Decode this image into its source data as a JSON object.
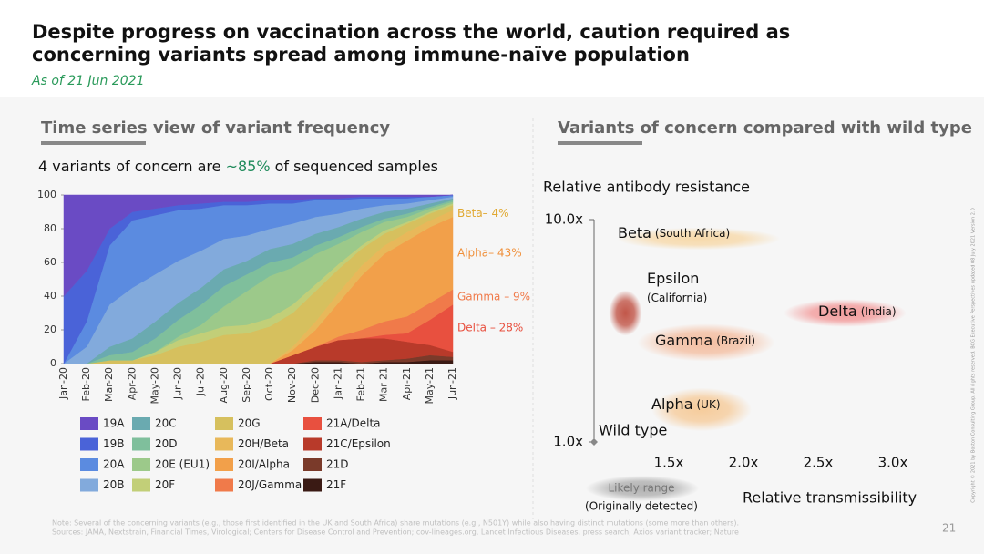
{
  "header": {
    "title_line1": "Despite progress on vaccination across the world, caution required as",
    "title_line2": "concerning variants spread among immune-naïve population",
    "subtitle": "As of 21 Jun 2021"
  },
  "chart_data": [
    {
      "type": "area",
      "section_title": "Time series view of variant frequency",
      "caption_pre": "4 variants of concern are ",
      "caption_highlight": "~85%",
      "caption_post": " of sequenced samples",
      "categories": [
        "Jan-20",
        "Feb-20",
        "Mar-20",
        "Apr-20",
        "May-20",
        "Jun-20",
        "Jul-20",
        "Aug-20",
        "Sep-20",
        "Oct-20",
        "Nov-20",
        "Dec-20",
        "Jan-21",
        "Feb-21",
        "Mar-21",
        "Apr-21",
        "May-21",
        "Jun-21"
      ],
      "ylim": [
        0,
        100
      ],
      "yticks": [
        0,
        20,
        40,
        60,
        80,
        100
      ],
      "stacked": true,
      "series": [
        {
          "name": "19A",
          "color": "#6a4bc4",
          "values": [
            60,
            45,
            20,
            10,
            8,
            6,
            5,
            4,
            4,
            3,
            3,
            2,
            2,
            1,
            1,
            1,
            1,
            0
          ]
        },
        {
          "name": "19B",
          "color": "#4a63d8",
          "values": [
            40,
            30,
            10,
            5,
            4,
            3,
            3,
            2,
            2,
            2,
            2,
            1,
            1,
            1,
            1,
            1,
            0,
            0
          ]
        },
        {
          "name": "20A",
          "color": "#5b8be0",
          "values": [
            0,
            15,
            35,
            40,
            35,
            30,
            25,
            20,
            18,
            15,
            12,
            10,
            8,
            6,
            4,
            3,
            2,
            1
          ]
        },
        {
          "name": "20B",
          "color": "#82aadc",
          "values": [
            0,
            10,
            25,
            30,
            28,
            25,
            22,
            18,
            15,
            12,
            12,
            10,
            8,
            6,
            4,
            3,
            2,
            1
          ]
        },
        {
          "name": "20C",
          "color": "#6aaab0",
          "values": [
            0,
            0,
            5,
            8,
            10,
            10,
            10,
            10,
            8,
            8,
            8,
            7,
            6,
            5,
            4,
            3,
            2,
            1
          ]
        },
        {
          "name": "20D",
          "color": "#7fbf9c",
          "values": [
            0,
            0,
            3,
            5,
            8,
            10,
            12,
            12,
            10,
            8,
            6,
            5,
            4,
            3,
            2,
            2,
            1,
            1
          ]
        },
        {
          "name": "20E (EU1)",
          "color": "#9cc98a",
          "values": [
            0,
            0,
            0,
            0,
            0,
            2,
            5,
            12,
            20,
            25,
            22,
            18,
            12,
            8,
            5,
            3,
            2,
            1
          ]
        },
        {
          "name": "20F",
          "color": "#c2cf78",
          "values": [
            0,
            0,
            0,
            0,
            2,
            4,
            5,
            5,
            5,
            5,
            5,
            4,
            3,
            2,
            2,
            1,
            1,
            1
          ]
        },
        {
          "name": "20G",
          "color": "#d6c05e",
          "values": [
            0,
            0,
            2,
            2,
            5,
            10,
            13,
            17,
            18,
            22,
            20,
            18,
            14,
            10,
            7,
            5,
            4,
            3
          ]
        },
        {
          "name": "20H/Beta",
          "color": "#e8b85a",
          "label": "Beta– 4%",
          "label_color": "#e0a830",
          "values": [
            0,
            0,
            0,
            0,
            0,
            0,
            0,
            0,
            0,
            0,
            2,
            5,
            6,
            6,
            5,
            5,
            4,
            4
          ]
        },
        {
          "name": "20I/Alpha",
          "color": "#f2a04a",
          "label": "Alpha– 43%",
          "label_color": "#f0903a",
          "values": [
            0,
            0,
            0,
            0,
            0,
            0,
            0,
            0,
            0,
            0,
            3,
            10,
            20,
            32,
            40,
            45,
            45,
            43
          ]
        },
        {
          "name": "20J/Gamma",
          "color": "#f07a4a",
          "label": "Gamma – 9%",
          "label_color": "#f07a4a",
          "values": [
            0,
            0,
            0,
            0,
            0,
            0,
            0,
            0,
            0,
            0,
            0,
            0,
            2,
            5,
            8,
            10,
            10,
            9
          ]
        },
        {
          "name": "21A/Delta",
          "color": "#e8503f",
          "label": "Delta – 28%",
          "label_color": "#e8503f",
          "values": [
            0,
            0,
            0,
            0,
            0,
            0,
            0,
            0,
            0,
            0,
            0,
            0,
            0,
            0,
            2,
            5,
            15,
            28
          ]
        },
        {
          "name": "21C/Epsilon",
          "color": "#b83a2a",
          "values": [
            0,
            0,
            0,
            0,
            0,
            0,
            0,
            0,
            0,
            0,
            5,
            8,
            12,
            14,
            13,
            10,
            6,
            3
          ]
        },
        {
          "name": "21D",
          "color": "#7a3a2a",
          "values": [
            0,
            0,
            0,
            0,
            0,
            0,
            0,
            0,
            0,
            0,
            0,
            1,
            1,
            1,
            1,
            2,
            3,
            2
          ]
        },
        {
          "name": "21F",
          "color": "#3a1a14",
          "values": [
            0,
            0,
            0,
            0,
            0,
            0,
            0,
            0,
            0,
            0,
            0,
            1,
            1,
            0,
            1,
            1,
            2,
            2
          ]
        }
      ]
    },
    {
      "type": "range",
      "section_title": "Variants of concern compared with wild type",
      "ylabel": "Relative antibody resistance",
      "xlabel": "Relative transmissibility",
      "ylog": true,
      "ylim": [
        1,
        10
      ],
      "yticks": [
        {
          "value": 1,
          "label": "1.0x"
        },
        {
          "value": 10,
          "label": "10.0x"
        }
      ],
      "xlim": [
        1,
        3.05
      ],
      "xticks": [
        {
          "value": 1.5,
          "label": "1.5x"
        },
        {
          "value": 2,
          "label": "2.0x"
        },
        {
          "value": 2.5,
          "label": "2.5x"
        },
        {
          "value": 3,
          "label": "3.0x"
        }
      ],
      "points": [
        {
          "name": "Beta",
          "region": "(South Africa)",
          "color": "#f8c77a",
          "x": 1.7,
          "y": 8.2,
          "xrange": [
            1.15,
            2.24
          ],
          "yrange": [
            7.3,
            9.2
          ]
        },
        {
          "name": "Epsilon",
          "region": "(California)",
          "color": "#b83a2a",
          "x": 1.21,
          "y": 3.8,
          "xrange": [
            1.1,
            1.32
          ],
          "yrange": [
            3,
            4.8
          ]
        },
        {
          "name": "Delta",
          "region": "(India)",
          "color": "#f06060",
          "x": 2.68,
          "y": 3.8,
          "xrange": [
            2.27,
            3.09
          ],
          "yrange": [
            3.3,
            4.4
          ]
        },
        {
          "name": "Gamma",
          "region": "(Brazil)",
          "color": "#f39a6a",
          "x": 1.75,
          "y": 2.8,
          "xrange": [
            1.29,
            2.21
          ],
          "yrange": [
            2.3,
            3.4
          ]
        },
        {
          "name": "Alpha",
          "region": "(UK)",
          "color": "#f5b060",
          "x": 1.72,
          "y": 1.4,
          "xrange": [
            1.38,
            2.05
          ],
          "yrange": [
            1.15,
            1.8
          ]
        }
      ],
      "reference": {
        "name": "Wild type",
        "x": 1,
        "y": 1
      },
      "legend_title": "Likely range",
      "legend_note": "(Originally detected)"
    }
  ],
  "footer": {
    "note": "Note: Several of the concerning variants (e.g., those first identified in the UK and South Africa) share mutations (e.g., N501Y) while also having distinct mutations (some more than others).",
    "sources": "Sources: JAMA, Nextstrain, Financial Times, Virological; Centers for Disease Control and Prevention; cov-lineages.org, Lancet Infectious Diseases, press search; Axios variant tracker; Nature",
    "page": "21",
    "copyright": "Copyright © 2021 by Boston Consulting Group. All rights reserved. BCG Executive Perspectives updated 08 July 2021 Version 2.0"
  }
}
